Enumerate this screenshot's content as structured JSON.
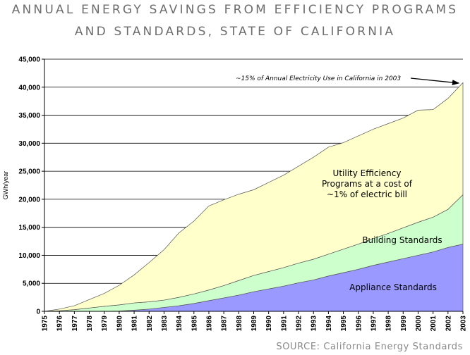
{
  "title_lines": [
    "ANNUAL ENERGY SAVINGS FROM EFFICIENCY PROGRAMS",
    "AND STANDARDS, STATE OF CALIFORNIA"
  ],
  "source": "SOURCE: California Energy Standards",
  "chart_data": {
    "type": "area",
    "stacked": true,
    "ylabel": "GWh/year",
    "xlabel": "",
    "ylim": [
      0,
      45000
    ],
    "yticks": [
      "0",
      "5,000",
      "10,000",
      "15,000",
      "20,000",
      "25,000",
      "30,000",
      "35,000",
      "40,000",
      "45,000"
    ],
    "grid": true,
    "x": [
      "1975",
      "1976",
      "1977",
      "1978",
      "1979",
      "1980",
      "1981",
      "1982",
      "1983",
      "1984",
      "1985",
      "1986",
      "1987",
      "1988",
      "1989",
      "1990",
      "1991",
      "1992",
      "1993",
      "1994",
      "1995",
      "1996",
      "1997",
      "1998",
      "1999",
      "2000",
      "2001",
      "2002",
      "2003"
    ],
    "series": [
      {
        "name": "Appliance Standards",
        "color": "#9999ff",
        "values": [
          0,
          0,
          0,
          0,
          0,
          50,
          200,
          400,
          700,
          1000,
          1400,
          1900,
          2400,
          2900,
          3500,
          4000,
          4500,
          5100,
          5600,
          6300,
          6900,
          7500,
          8200,
          8800,
          9400,
          10000,
          10600,
          11400,
          12000
        ]
      },
      {
        "name": "Building Standards",
        "color": "#ccffcc",
        "values": [
          0,
          100,
          300,
          600,
          900,
          1100,
          1300,
          1300,
          1300,
          1500,
          1700,
          1900,
          2200,
          2600,
          2900,
          3100,
          3300,
          3500,
          3700,
          3900,
          4200,
          4500,
          4800,
          5100,
          5500,
          5900,
          6200,
          6800,
          8800
        ]
      },
      {
        "name": "Utility Efficiency Programs at a cost of ~1% of electric bill",
        "color": "#ffffcc",
        "values": [
          0,
          300,
          700,
          1500,
          2300,
          3500,
          5000,
          7000,
          9000,
          11500,
          13000,
          15000,
          15300,
          15400,
          15300,
          15900,
          16500,
          17300,
          18200,
          19100,
          19000,
          19300,
          19500,
          19600,
          19600,
          20000,
          19200,
          19800,
          20000
        ]
      }
    ],
    "area_labels": {
      "utility": [
        "Utility Efficiency",
        "Programs at a cost of",
        "~1% of electric bill"
      ],
      "building": "Building Standards",
      "appliance": "Appliance Standards"
    },
    "annotation": "~15% of Annual Electricity Use in California in 2003"
  }
}
